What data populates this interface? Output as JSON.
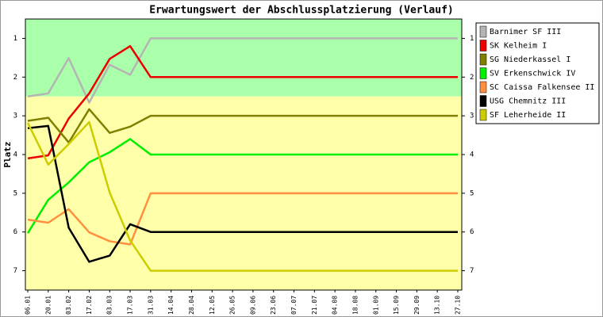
{
  "chart_data": {
    "type": "line",
    "title": "Erwartungswert der Abschlussplatzierung (Verlauf)",
    "y_label": "Platz",
    "categories": [
      "06.01",
      "20.01",
      "03.02",
      "17.02",
      "03.03",
      "17.03",
      "31.03",
      "14.04",
      "28.04",
      "12.05",
      "26.05",
      "09.06",
      "23.06",
      "07.07",
      "21.07",
      "04.08",
      "18.08",
      "01.09",
      "15.09",
      "29.09",
      "13.10",
      "27.10"
    ],
    "ylim": [
      0.5,
      7.5
    ],
    "y_inverted": true,
    "yticks": [
      1,
      2,
      3,
      4,
      5,
      6,
      7
    ],
    "bands": [
      {
        "from": 0.5,
        "to": 2.5,
        "color": "#aaffaa"
      },
      {
        "from": 2.5,
        "to": 7.5,
        "color": "#ffffaa"
      }
    ],
    "series": [
      {
        "name": "Barnimer SF III",
        "color": "#b4b4b4",
        "values": [
          2.5,
          2.42,
          1.51,
          2.66,
          1.68,
          1.94,
          1,
          1,
          1,
          1,
          1,
          1,
          1,
          1,
          1,
          1,
          1,
          1,
          1,
          1,
          1,
          1
        ]
      },
      {
        "name": "SK Kelheim I",
        "color": "#ee0000",
        "values": [
          4.1,
          4.02,
          3.07,
          2.42,
          1.53,
          1.2,
          2,
          2,
          2,
          2,
          2,
          2,
          2,
          2,
          2,
          2,
          2,
          2,
          2,
          2,
          2,
          2
        ]
      },
      {
        "name": "SG Niederkassel I",
        "color": "#808000",
        "values": [
          3.13,
          3.05,
          3.69,
          2.83,
          3.44,
          3.28,
          3,
          3,
          3,
          3,
          3,
          3,
          3,
          3,
          3,
          3,
          3,
          3,
          3,
          3,
          3,
          3
        ]
      },
      {
        "name": "SV Erkenschwick IV",
        "color": "#00ee00",
        "values": [
          6.03,
          5.17,
          4.72,
          4.2,
          3.94,
          3.6,
          4,
          4,
          4,
          4,
          4,
          4,
          4,
          4,
          4,
          4,
          4,
          4,
          4,
          4,
          4,
          4
        ]
      },
      {
        "name": "SC Caissa Falkensee II",
        "color": "#ff9040",
        "values": [
          5.68,
          5.76,
          5.41,
          6.01,
          6.24,
          6.32,
          5,
          5,
          5,
          5,
          5,
          5,
          5,
          5,
          5,
          5,
          5,
          5,
          5,
          5,
          5,
          5
        ]
      },
      {
        "name": "USG Chemnitz III",
        "color": "#000000",
        "values": [
          3.32,
          3.26,
          5.89,
          6.77,
          6.61,
          5.8,
          6,
          6,
          6,
          6,
          6,
          6,
          6,
          6,
          6,
          6,
          6,
          6,
          6,
          6,
          6,
          6
        ]
      },
      {
        "name": "SF Leherheide II",
        "color": "#cccc00",
        "values": [
          3.18,
          4.26,
          3.73,
          3.16,
          4.98,
          6.22,
          7,
          7,
          7,
          7,
          7,
          7,
          7,
          7,
          7,
          7,
          7,
          7,
          7,
          7,
          7,
          7
        ]
      }
    ]
  }
}
